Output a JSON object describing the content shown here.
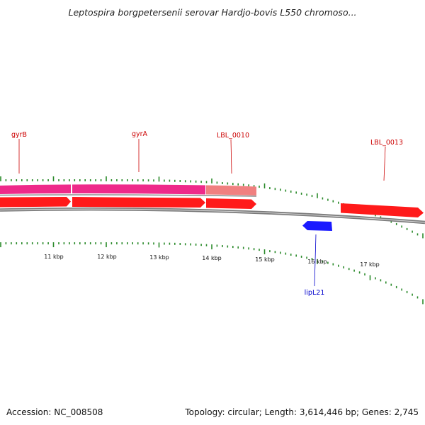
{
  "title": "Leptospira borgpetersenii serovar Hardjo-bovis L550 chromoso...",
  "footer": {
    "accession": "Accession: NC_008508",
    "summary": "Topology: circular; Length: 3,614,446 bp; Genes: 2,745"
  },
  "colors": {
    "forward_gene": "#ff1a1a",
    "reverse_gene": "#1a1aff",
    "cds_magenta": "#ee2a8a",
    "cds_pink": "#f08080",
    "tick": "#2a8a2a",
    "backbone": "#8a8a8a",
    "forward_label": "#cc0000",
    "reverse_label": "#0000cc"
  },
  "scale_labels": [
    "11 kbp",
    "12 kbp",
    "13 kbp",
    "14 kbp",
    "15 kbp",
    "16 kbp",
    "17 kbp"
  ],
  "gene_labels": [
    {
      "name": "gyrB",
      "strand": "forward"
    },
    {
      "name": "gyrA",
      "strand": "forward"
    },
    {
      "name": "LBL_0010",
      "strand": "forward"
    },
    {
      "name": "LBL_0013",
      "strand": "forward"
    },
    {
      "name": "lipL21",
      "strand": "reverse"
    }
  ]
}
